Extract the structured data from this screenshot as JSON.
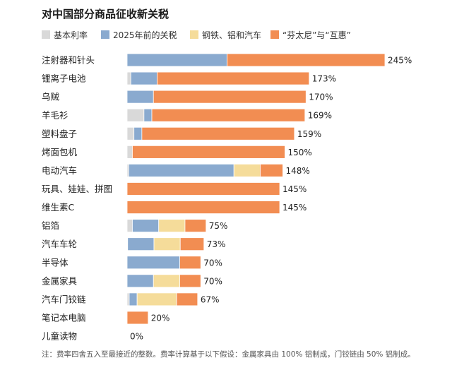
{
  "chart_data": {
    "type": "bar",
    "orientation": "horizontal",
    "stacked": true,
    "title": "对中国部分商品征收新关税",
    "xlabel": "",
    "ylabel": "",
    "xlim": [
      0,
      245
    ],
    "grid": false,
    "legend_position": "top",
    "value_suffix": "%",
    "categories": [
      "注射器和针头",
      "锂离子电池",
      "乌贼",
      "羊毛衫",
      "塑料盘子",
      "烤面包机",
      "电动汽车",
      "玩具、娃娃、拼图",
      "维生素C",
      "铝箔",
      "汽车车轮",
      "半导体",
      "金属家具",
      "汽车门铰链",
      "笔记本电脑",
      "儿童读物"
    ],
    "series": [
      {
        "name": "基本利率",
        "color": "#d9d9d9",
        "values": [
          0,
          3.5,
          0,
          16,
          6.5,
          5,
          1.5,
          0,
          0,
          5,
          0.5,
          0,
          0,
          2,
          0,
          0
        ]
      },
      {
        "name": "2025年前的关税",
        "color": "#8aaacf",
        "values": [
          95,
          25,
          25,
          7.5,
          7.5,
          0,
          100,
          0,
          0,
          25,
          25,
          50,
          25,
          7.5,
          0,
          0
        ]
      },
      {
        "name": "钢铁、铝和汽车",
        "color": "#f5dc9a",
        "values": [
          0,
          0,
          0,
          0,
          0,
          0,
          25,
          0,
          0,
          25,
          25,
          0,
          25,
          37.5,
          0,
          0
        ]
      },
      {
        "name": "“芬太尼”与“互惠”",
        "color": "#f28d52",
        "values": [
          150,
          144.5,
          145,
          145.5,
          145,
          145,
          21.5,
          145,
          145,
          20,
          22.5,
          20,
          20,
          20,
          20,
          0
        ]
      }
    ],
    "totals": [
      "245%",
      "173%",
      "170%",
      "169%",
      "159%",
      "150%",
      "148%",
      "145%",
      "145%",
      "75%",
      "73%",
      "70%",
      "70%",
      "67%",
      "20%",
      "0%"
    ]
  },
  "footnote": "注：费率四舍五入至最接近的整数。费率计算基于以下假设：金属家具由 100% 铝制成，门铰链由 50% 铝制成。"
}
